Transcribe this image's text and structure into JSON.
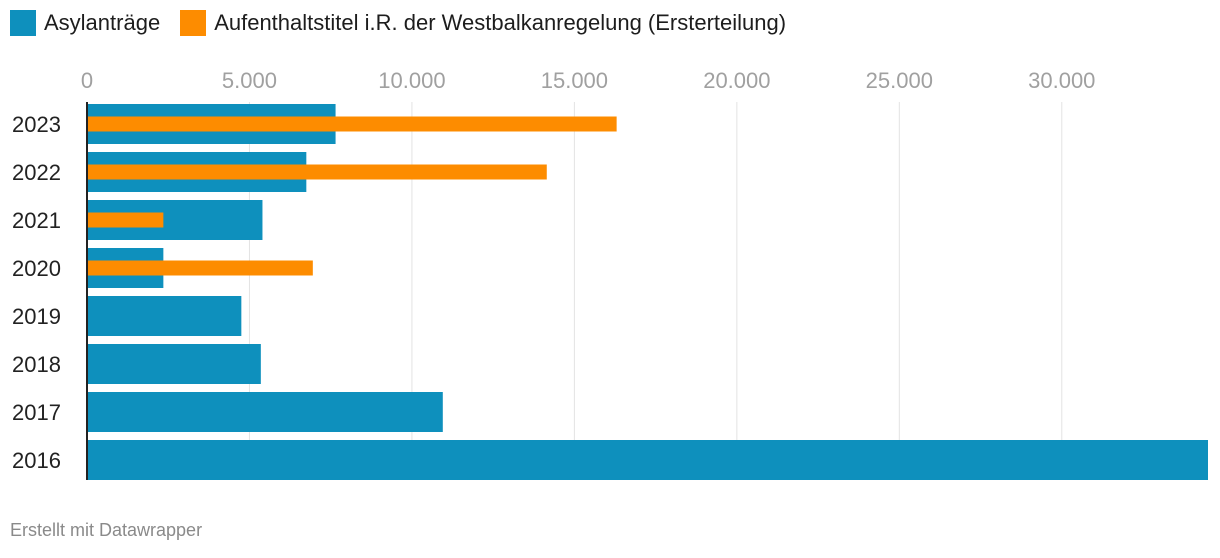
{
  "legend": {
    "items": [
      {
        "label": "Asylanträge",
        "color": "#0e90bd"
      },
      {
        "label": "Aufenthaltstitel i.R. der Westbalkanregelung (Ersterteilung)",
        "color": "#fd8c00"
      }
    ]
  },
  "footer": {
    "credit": "Erstellt mit Datawrapper"
  },
  "chart_data": {
    "type": "bar",
    "orientation": "horizontal",
    "title": "",
    "xlabel": "",
    "ylabel": "",
    "categories": [
      "2023",
      "2022",
      "2021",
      "2020",
      "2019",
      "2018",
      "2017",
      "2016"
    ],
    "series": [
      {
        "name": "Asylanträge",
        "color": "#0e90bd",
        "values": [
          7650,
          6750,
          5400,
          2350,
          4750,
          5350,
          10950,
          34500
        ]
      },
      {
        "name": "Aufenthaltstitel i.R. der Westbalkanregelung (Ersterteilung)",
        "color": "#fd8c00",
        "values": [
          16300,
          14150,
          2350,
          6950,
          null,
          null,
          null,
          null
        ]
      }
    ],
    "xlim": [
      0,
      34500
    ],
    "xticks": [
      0,
      5000,
      10000,
      15000,
      20000,
      25000,
      30000
    ],
    "xtick_labels": [
      "0",
      "5.000",
      "10.000",
      "15.000",
      "20.000",
      "25.000",
      "30.000"
    ],
    "tick_position": "top",
    "grid": true,
    "legend_position": "top-left"
  }
}
